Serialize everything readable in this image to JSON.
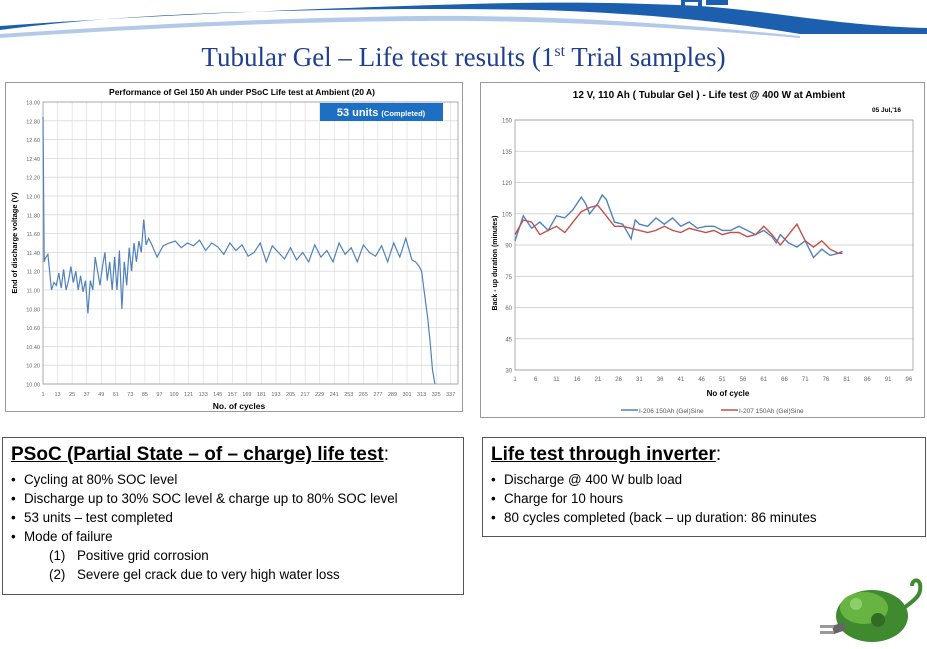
{
  "slide": {
    "title_main": "Tubular Gel – Life test results (1",
    "title_sup": "st",
    "title_end": " Trial samples)"
  },
  "colors": {
    "title": "#1f3f8f",
    "series_blue": "#4f81bd",
    "series_red": "#c0504d",
    "badge": "#1d6fc4"
  },
  "left_box": {
    "heading": "PSoC (Partial State – of – charge) life test",
    "heading_suffix": ":",
    "bullets": [
      "Cycling at 80% SOC level",
      "Discharge up to 30% SOC level & charge up to 80% SOC level",
      "53 units – test completed",
      "Mode of failure"
    ],
    "sub_items": [
      {
        "num": "(1)",
        "text": "Positive grid corrosion"
      },
      {
        "num": "(2)",
        "text": "Severe gel crack due to very high water loss"
      }
    ]
  },
  "right_box": {
    "heading": "Life test through inverter",
    "heading_suffix": ":",
    "bullets": [
      "Discharge @ 400 W bulb load",
      "Charge for 10 hours",
      "80 cycles completed (back – up duration: 86 minutes"
    ]
  },
  "chart_data": [
    {
      "type": "line",
      "title": "Performance of Gel 150 Ah  under PSoC Life test at Ambient (20 A)",
      "badge_main": "53  units",
      "badge_sub": "(Completed)",
      "xlabel": "No. of cycles",
      "ylabel": "End of discharge voltage (V)",
      "ylim": [
        10.0,
        13.0
      ],
      "yticks": [
        "10.00",
        "10.20",
        "10.40",
        "10.60",
        "10.80",
        "11.00",
        "11.20",
        "11.40",
        "11.60",
        "11.80",
        "12.00",
        "12.20",
        "12.40",
        "12.60",
        "12.80",
        "13.00"
      ],
      "xlim": [
        1,
        343
      ],
      "xticks": [
        1,
        13,
        25,
        37,
        49,
        61,
        73,
        85,
        97,
        109,
        121,
        133,
        145,
        157,
        169,
        181,
        193,
        205,
        217,
        229,
        241,
        253,
        265,
        277,
        289,
        301,
        313,
        325,
        337
      ],
      "grid": true,
      "series": [
        {
          "x": [
            1,
            2,
            3,
            5,
            8,
            10,
            12,
            14,
            16,
            18,
            20,
            22,
            24,
            26,
            28,
            30,
            32,
            34,
            36,
            38,
            40,
            42,
            44,
            46,
            48,
            50,
            52,
            54,
            56,
            58,
            60,
            62,
            64,
            66,
            68,
            70,
            72,
            74,
            76,
            78,
            80,
            82,
            84,
            86,
            88,
            90,
            95,
            100,
            105,
            110,
            115,
            120,
            125,
            130,
            135,
            140,
            145,
            150,
            155,
            160,
            165,
            170,
            175,
            180,
            185,
            190,
            195,
            200,
            205,
            210,
            215,
            220,
            225,
            230,
            235,
            240,
            245,
            250,
            255,
            260,
            265,
            270,
            275,
            280,
            285,
            290,
            295,
            300,
            305,
            308,
            311,
            313,
            315,
            318,
            320,
            322,
            324
          ],
          "values": [
            12.84,
            11.3,
            11.34,
            11.38,
            11.0,
            11.08,
            11.05,
            11.18,
            11.02,
            11.22,
            11.0,
            11.1,
            11.25,
            11.08,
            11.2,
            11.0,
            11.15,
            10.98,
            11.1,
            10.75,
            11.1,
            11.0,
            11.35,
            11.2,
            11.05,
            11.25,
            11.4,
            11.1,
            11.3,
            11.0,
            11.35,
            11.0,
            11.42,
            10.8,
            11.3,
            11.05,
            11.45,
            11.2,
            11.5,
            11.3,
            11.52,
            11.4,
            11.75,
            11.48,
            11.55,
            11.5,
            11.35,
            11.47,
            11.5,
            11.52,
            11.45,
            11.5,
            11.47,
            11.53,
            11.42,
            11.5,
            11.46,
            11.38,
            11.5,
            11.42,
            11.48,
            11.36,
            11.4,
            11.5,
            11.3,
            11.47,
            11.4,
            11.33,
            11.45,
            11.32,
            11.4,
            11.3,
            11.48,
            11.35,
            11.42,
            11.3,
            11.5,
            11.38,
            11.45,
            11.3,
            11.48,
            11.4,
            11.36,
            11.47,
            11.3,
            11.5,
            11.35,
            11.55,
            11.32,
            11.3,
            11.25,
            11.2,
            11.0,
            10.7,
            10.45,
            10.15,
            10.0
          ]
        }
      ]
    },
    {
      "type": "line",
      "title": "12 V, 110 Ah ( Tubular Gel ) - Life test @ 400 W at Ambient",
      "date": "05 Jul,'16",
      "xlabel": "No of cycle",
      "ylabel": "Back - up duration (minutes)",
      "ylim": [
        30,
        150
      ],
      "yticks": [
        30,
        45,
        60,
        75,
        90,
        105,
        120,
        135,
        150
      ],
      "xlim": [
        1,
        97
      ],
      "xticks": [
        1,
        6,
        11,
        16,
        21,
        26,
        31,
        36,
        41,
        46,
        51,
        56,
        61,
        66,
        71,
        76,
        81,
        86,
        91,
        96
      ],
      "legend_position": "bottom",
      "series": [
        {
          "name": "I-206 150Ah (Gel)Sine",
          "x": [
            1,
            3,
            5,
            7,
            9,
            11,
            13,
            15,
            17,
            18,
            19,
            21,
            22,
            23,
            25,
            27,
            29,
            30,
            31,
            33,
            35,
            37,
            39,
            41,
            43,
            45,
            47,
            49,
            51,
            53,
            55,
            57,
            59,
            61,
            63,
            64,
            65,
            67,
            69,
            71,
            73,
            75,
            77,
            79,
            80
          ],
          "values": [
            92,
            104,
            98,
            101,
            97,
            104,
            103,
            107,
            113,
            110,
            105,
            110,
            114,
            112,
            101,
            100,
            93,
            102,
            100,
            99,
            103,
            100,
            103,
            99,
            101,
            98,
            99,
            99,
            97,
            97,
            99,
            97,
            95,
            97,
            94,
            91,
            95,
            91,
            89,
            92,
            84,
            88,
            85,
            86,
            87
          ]
        },
        {
          "name": "I-207 150Ah (Gel)Sine",
          "x": [
            1,
            3,
            5,
            7,
            9,
            11,
            13,
            15,
            17,
            19,
            21,
            23,
            25,
            27,
            29,
            31,
            33,
            35,
            37,
            39,
            41,
            43,
            45,
            47,
            49,
            51,
            53,
            55,
            57,
            59,
            61,
            63,
            65,
            67,
            69,
            71,
            73,
            75,
            77,
            79,
            80
          ],
          "values": [
            95,
            102,
            101,
            95,
            97,
            99,
            96,
            101,
            106,
            108,
            109,
            104,
            99,
            99,
            98,
            97,
            96,
            97,
            99,
            97,
            96,
            98,
            97,
            96,
            97,
            95,
            96,
            96,
            94,
            95,
            99,
            95,
            90,
            95,
            100,
            92,
            89,
            92,
            88,
            86,
            86
          ]
        }
      ]
    }
  ]
}
